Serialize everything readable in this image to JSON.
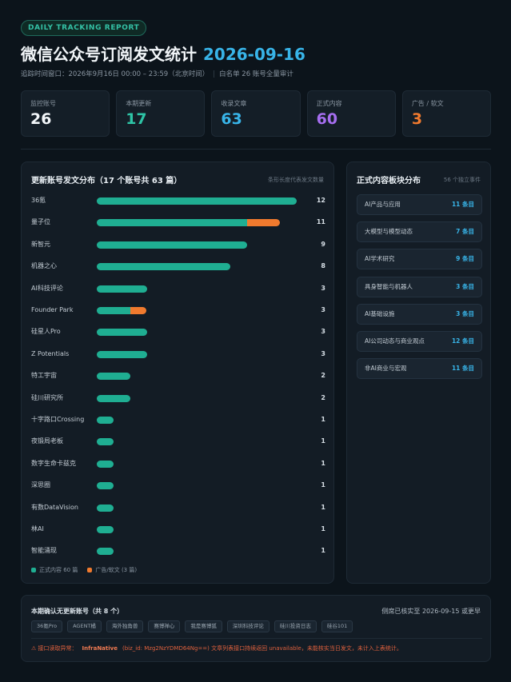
{
  "header": {
    "badge": "DAILY TRACKING REPORT",
    "title": "微信公众号订阅发文统计",
    "date": "2026-09-16",
    "window": "追踪时间窗口：2026年9月16日 00:00 – 23:59（北京时间）",
    "scope": "白名单 26 账号全量审计"
  },
  "kpis": [
    {
      "label": "监控账号",
      "value": "26",
      "color": "#f2f6f9"
    },
    {
      "label": "本期更新",
      "value": "17",
      "color": "#2ec4a6"
    },
    {
      "label": "收录文章",
      "value": "63",
      "color": "#38b4e8"
    },
    {
      "label": "正式内容",
      "value": "60",
      "color": "#a66ef0"
    },
    {
      "label": "广告 / 软文",
      "value": "3",
      "color": "#f07a2e"
    }
  ],
  "distribution": {
    "title": "更新账号发文分布（17 个账号共 63 篇）",
    "note": "条形长度代表发文数量",
    "max": 12,
    "colors": {
      "formal": "#1fae92",
      "ad": "#f07a2e"
    },
    "rows": [
      {
        "name": "36氪",
        "formal": 12,
        "ad": 0,
        "total": "12"
      },
      {
        "name": "量子位",
        "formal": 9,
        "ad": 2,
        "total": "11"
      },
      {
        "name": "新智元",
        "formal": 9,
        "ad": 0,
        "total": "9"
      },
      {
        "name": "机器之心",
        "formal": 8,
        "ad": 0,
        "total": "8"
      },
      {
        "name": "AI科技评论",
        "formal": 3,
        "ad": 0,
        "total": "3"
      },
      {
        "name": "Founder Park",
        "formal": 2,
        "ad": 1,
        "total": "3"
      },
      {
        "name": "硅星人Pro",
        "formal": 3,
        "ad": 0,
        "total": "3"
      },
      {
        "name": "Z Potentials",
        "formal": 3,
        "ad": 0,
        "total": "3"
      },
      {
        "name": "特工宇宙",
        "formal": 2,
        "ad": 0,
        "total": "2"
      },
      {
        "name": "硅川研究所",
        "formal": 2,
        "ad": 0,
        "total": "2"
      },
      {
        "name": "十字路口Crossing",
        "formal": 1,
        "ad": 0,
        "total": "1"
      },
      {
        "name": "夜锻局老板",
        "formal": 1,
        "ad": 0,
        "total": "1"
      },
      {
        "name": "数字生命卡兹克",
        "formal": 1,
        "ad": 0,
        "total": "1"
      },
      {
        "name": "深思圈",
        "formal": 1,
        "ad": 0,
        "total": "1"
      },
      {
        "name": "有数DataVision",
        "formal": 1,
        "ad": 0,
        "total": "1"
      },
      {
        "name": "林AI",
        "formal": 1,
        "ad": 0,
        "total": "1"
      },
      {
        "name": "智能涌现",
        "formal": 1,
        "ad": 0,
        "total": "1"
      }
    ],
    "legend": {
      "formal": "正式内容 60 篇",
      "ad": "广告/软文 (3 篇)"
    }
  },
  "categories": {
    "title": "正式内容板块分布",
    "note": "56 个独立事件",
    "items": [
      {
        "name": "AI产品与应用",
        "count": "11 条目"
      },
      {
        "name": "大模型与模型动态",
        "count": "7 条目"
      },
      {
        "name": "AI学术研究",
        "count": "9 条目"
      },
      {
        "name": "具身智能与机器人",
        "count": "3 条目"
      },
      {
        "name": "AI基础设施",
        "count": "3 条目"
      },
      {
        "name": "AI公司动态与商业观点",
        "count": "12 条目"
      },
      {
        "name": "非AI商业与宏观",
        "count": "11 条目"
      }
    ]
  },
  "no_update": {
    "title": "本期确认无更新账号（共 8 个）",
    "note": "侧席已核实至 2026-09-15 或更早",
    "accounts": [
      "36氪Pro",
      "AGENT橘",
      "海外独角兽",
      "赛博禅心",
      "我是赛博狐",
      "深圳科技评论",
      "硅川投资日志",
      "硅谷101"
    ],
    "warning_prefix": "⚠ 接口读取异常：",
    "warning_name": "InfraNative",
    "warning_text": "(biz_id: Mzg2NzYDMD64Ng==) 文章列表接口持续返回 unavailable，未能核实当日发文，未计入上表统计。"
  }
}
